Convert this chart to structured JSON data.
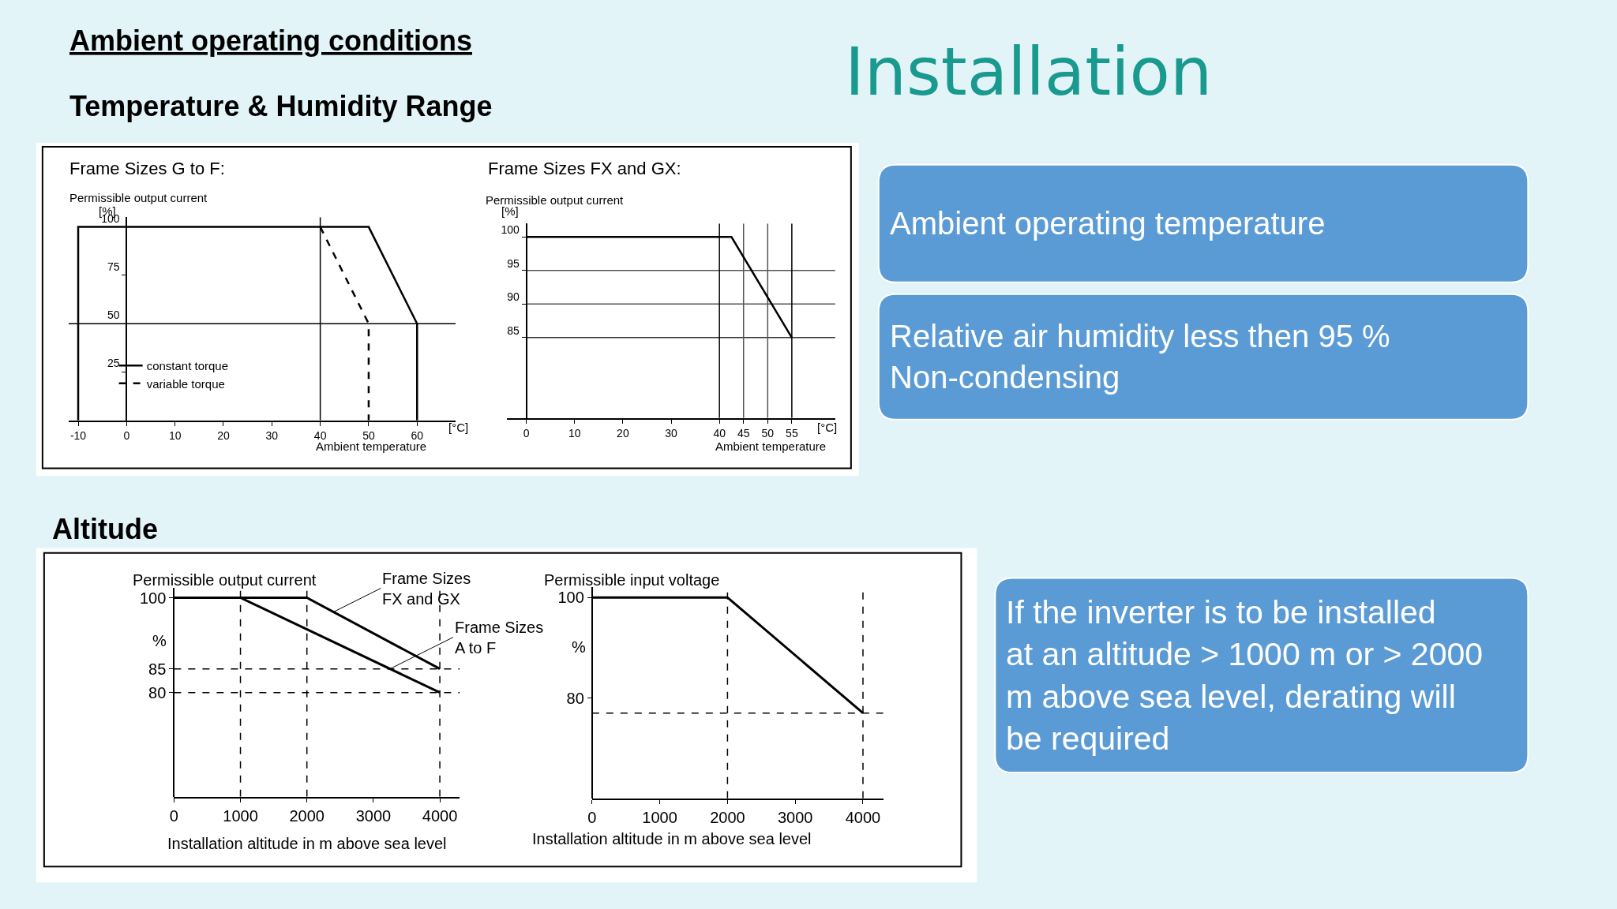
{
  "chart_data": [
    {
      "type": "other",
      "title": "Installation",
      "annotations": [
        "Ambient operating conditions",
        "Temperature & Humidity Range",
        "Altitude",
        "Ambient operating temperature",
        "Relative air humidity less then 95 %\nNon-condensing",
        "If the inverter is to be installed\nat an altitude > 1000 m or > 2000\nm above sea level, derating will\nbe required"
      ]
    },
    {
      "type": "line",
      "title": "Frame Sizes G to F:",
      "ylabel": "Permissible output current",
      "xlabel": "Ambient temperature",
      "annotations": [
        "[°C]",
        "[%]"
      ],
      "xlim": [
        -12,
        68
      ],
      "xticks": [
        -10,
        0,
        10,
        20,
        30,
        40,
        50,
        60
      ],
      "ylim": [
        0,
        105
      ],
      "yticks": [
        25,
        50,
        75,
        100
      ],
      "legend": "bottom left",
      "series": [
        {
          "name": "constant torque",
          "color": "#000000",
          "x": [
            -10,
            -10,
            50,
            60,
            60
          ],
          "values": [
            0,
            100,
            100,
            50,
            0
          ]
        },
        {
          "name": "variable torque",
          "color": "#000000",
          "line_style": "dashed",
          "x": [
            40,
            50,
            50
          ],
          "values": [
            100,
            50,
            0
          ]
        }
      ],
      "ref_lines": [
        {
          "axis": "y",
          "value": 50,
          "color": "#000000"
        },
        {
          "axis": "x",
          "value": 40,
          "color": "#000000"
        }
      ]
    },
    {
      "type": "line",
      "title": "Frame Sizes FX and GX:",
      "ylabel": "Permissible output current",
      "xlabel": "Ambient temperature",
      "annotations": [
        "[°C]",
        "[%]"
      ],
      "xlim": [
        -4,
        64
      ],
      "xticks": [
        0,
        10,
        20,
        30,
        40,
        45,
        50,
        55
      ],
      "ylim": [
        73,
        102
      ],
      "yticks": [
        85,
        90,
        95,
        100
      ],
      "series": [
        {
          "color": "#000000",
          "x": [
            0,
            42.5,
            55
          ],
          "values": [
            100,
            100,
            85
          ]
        }
      ],
      "ref_lines": [
        {
          "axis": "y",
          "value": 95,
          "color": "#555555"
        },
        {
          "axis": "y",
          "value": 90,
          "color": "#555555"
        },
        {
          "axis": "y",
          "value": 85,
          "color": "#333333"
        },
        {
          "axis": "x",
          "value": 40,
          "color": "#000000"
        },
        {
          "axis": "x",
          "value": 45,
          "color": "#555555"
        },
        {
          "axis": "x",
          "value": 50,
          "color": "#555555"
        },
        {
          "axis": "x",
          "value": 55,
          "color": "#000000"
        }
      ]
    },
    {
      "type": "line",
      "title": "Permissible output current",
      "ylabel": "%",
      "xlabel": "Installation altitude in m above sea level",
      "xlim": [
        0,
        4300
      ],
      "xticks": [
        0,
        1000,
        2000,
        3000,
        4000
      ],
      "ylim": [
        58,
        102
      ],
      "yticks": [
        80,
        85,
        100
      ],
      "series": [
        {
          "name": "Frame Sizes\nFX and GX",
          "color": "#000000",
          "x": [
            0,
            2000,
            4000
          ],
          "values": [
            100,
            100,
            85
          ]
        },
        {
          "name": "Frame Sizes\nA to F",
          "color": "#000000",
          "x": [
            0,
            1000,
            4000
          ],
          "values": [
            100,
            100,
            80
          ]
        }
      ],
      "ref_lines": [
        {
          "axis": "x",
          "value": 1000,
          "line_style": "dashed"
        },
        {
          "axis": "x",
          "value": 2000,
          "line_style": "dashed"
        },
        {
          "axis": "x",
          "value": 4000,
          "line_style": "dashed"
        },
        {
          "axis": "y",
          "value": 85,
          "line_style": "dashed"
        },
        {
          "axis": "y",
          "value": 80,
          "line_style": "dashed"
        }
      ]
    },
    {
      "type": "line",
      "title": "Permissible input voltage",
      "ylabel": "%",
      "xlabel": "Installation altitude in m above sea level",
      "xlim": [
        0,
        4300
      ],
      "xticks": [
        0,
        1000,
        2000,
        3000,
        4000
      ],
      "ylim": [
        60,
        102
      ],
      "yticks": [
        80,
        100
      ],
      "series": [
        {
          "color": "#000000",
          "x": [
            0,
            2000,
            4000
          ],
          "values": [
            100,
            100,
            77
          ]
        }
      ],
      "ref_lines": [
        {
          "axis": "x",
          "value": 2000,
          "line_style": "dashed"
        },
        {
          "axis": "x",
          "value": 4000,
          "line_style": "dashed"
        },
        {
          "axis": "y",
          "value": 77,
          "line_style": "dashed"
        }
      ]
    }
  ]
}
